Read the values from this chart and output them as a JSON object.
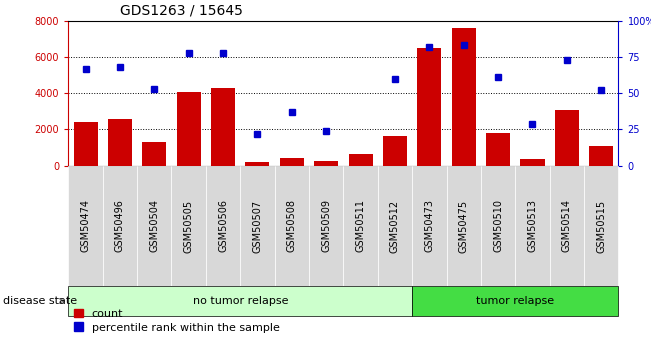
{
  "title": "GDS1263 / 15645",
  "samples": [
    "GSM50474",
    "GSM50496",
    "GSM50504",
    "GSM50505",
    "GSM50506",
    "GSM50507",
    "GSM50508",
    "GSM50509",
    "GSM50511",
    "GSM50512",
    "GSM50473",
    "GSM50475",
    "GSM50510",
    "GSM50513",
    "GSM50514",
    "GSM50515"
  ],
  "counts": [
    2400,
    2550,
    1300,
    4050,
    4300,
    200,
    400,
    250,
    650,
    1650,
    6500,
    7600,
    1800,
    350,
    3050,
    1100
  ],
  "percentiles": [
    67,
    68,
    53,
    78,
    78,
    22,
    37,
    24,
    null,
    60,
    82,
    83,
    61,
    29,
    73,
    52
  ],
  "no_tumor_count": 10,
  "tumor_count": 6,
  "ylim_left": [
    0,
    8000
  ],
  "ylim_right": [
    0,
    100
  ],
  "yticks_left": [
    0,
    2000,
    4000,
    6000,
    8000
  ],
  "yticks_right": [
    0,
    25,
    50,
    75,
    100
  ],
  "bar_color": "#cc0000",
  "dot_color": "#0000cc",
  "no_tumor_color": "#ccffcc",
  "tumor_color": "#44dd44",
  "background_color": "#ffffff",
  "title_fontsize": 10,
  "tick_fontsize": 7,
  "label_fontsize": 8
}
